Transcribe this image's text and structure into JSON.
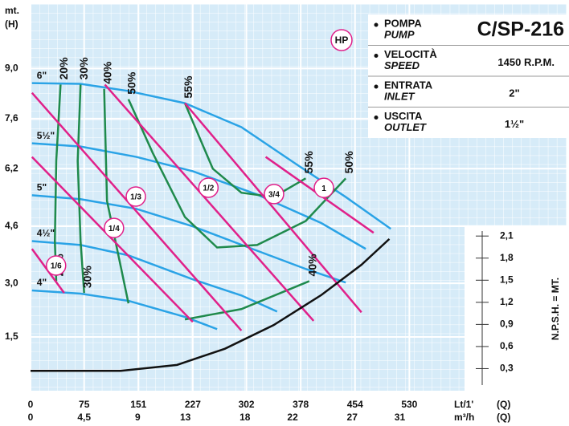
{
  "chart_data": {
    "type": "line",
    "y_axis_label": "mt.",
    "y_axis_unit": "(H)",
    "x_axis_label": "Lt/1'",
    "x_axis_unit": "(Q)",
    "x2_axis_label": "m³/h",
    "x2_axis_unit": "(Q)",
    "y2_axis_label": "N.P.S.H. = MT.",
    "badge": "HP",
    "grid": true,
    "xlim": [
      0,
      750
    ],
    "xticks": [
      0,
      75,
      151,
      227,
      302,
      378,
      454,
      530
    ],
    "x2lim": [
      0,
      45
    ],
    "x2ticks": [
      0,
      {
        "value": 4.5,
        "label": "4,5"
      },
      9,
      13,
      18,
      22,
      27,
      31
    ],
    "ylim": [
      0,
      10.8
    ],
    "yticks": [
      {
        "value": 1.5,
        "label": "1,5"
      },
      {
        "value": 3.0,
        "label": "3,0"
      },
      {
        "value": 4.6,
        "label": "4,6"
      },
      {
        "value": 6.2,
        "label": "6,2"
      },
      {
        "value": 7.6,
        "label": "7,6"
      },
      {
        "value": 9.0,
        "label": "9,0"
      }
    ],
    "y2lim": [
      0,
      5.25
    ],
    "y2ticks": [
      {
        "value": 0.3,
        "label": "0,3"
      },
      {
        "value": 0.6,
        "label": "0,6"
      },
      {
        "value": 0.9,
        "label": "0,9"
      },
      {
        "value": 1.2,
        "label": "1,2"
      },
      {
        "value": 1.5,
        "label": "1,5"
      },
      {
        "value": 1.8,
        "label": "1,8"
      },
      {
        "value": 2.1,
        "label": "2,1"
      }
    ],
    "impeller_curves": [
      {
        "name": "6\"",
        "color": "#2aa3e6",
        "x": [
          2,
          70,
          137,
          216,
          295,
          373,
          441,
          504
        ],
        "y": [
          8.59,
          8.57,
          8.37,
          8.03,
          7.36,
          6.31,
          5.41,
          4.52
        ]
      },
      {
        "name": "5½\"",
        "color": "#2aa3e6",
        "x": [
          2,
          70,
          148,
          227,
          317,
          407,
          469
        ],
        "y": [
          6.91,
          6.82,
          6.53,
          6.13,
          5.48,
          4.68,
          3.96
        ]
      },
      {
        "name": "5\"",
        "color": "#2aa3e6",
        "x": [
          2,
          70,
          148,
          227,
          317,
          385,
          441
        ],
        "y": [
          5.46,
          5.35,
          5.08,
          4.59,
          3.91,
          3.4,
          3.02
        ]
      },
      {
        "name": "4½\"",
        "color": "#2aa3e6",
        "x": [
          2,
          70,
          137,
          227,
          295,
          345
        ],
        "y": [
          4.18,
          4.07,
          3.78,
          3.11,
          2.66,
          2.21
        ]
      },
      {
        "name": "4\"",
        "color": "#2aa3e6",
        "x": [
          2,
          70,
          137,
          216,
          261
        ],
        "y": [
          2.8,
          2.71,
          2.51,
          2.06,
          1.72
        ]
      }
    ],
    "power_curves": [
      {
        "name": "1/6",
        "color": "#e0218a",
        "x": [
          2,
          47
        ],
        "y": [
          3.96,
          2.73
        ]
      },
      {
        "name": "1/4",
        "color": "#e0218a",
        "x": [
          2,
          227
        ],
        "y": [
          6.53,
          1.92
        ]
      },
      {
        "name": "1/3",
        "color": "#e0218a",
        "x": [
          2,
          295
        ],
        "y": [
          8.32,
          1.68
        ]
      },
      {
        "name": "1/2",
        "color": "#e0218a",
        "x": [
          104,
          396
        ],
        "y": [
          8.55,
          1.95
        ]
      },
      {
        "name": "3/4",
        "color": "#e0218a",
        "x": [
          216,
          463
        ],
        "y": [
          8.03,
          2.19
        ]
      },
      {
        "name": "1",
        "color": "#e0218a",
        "x": [
          329,
          480
        ],
        "y": [
          6.53,
          4.41
        ]
      }
    ],
    "efficiency_curves": [
      {
        "name": "20%",
        "color": "#1f8a4c",
        "x": [
          42,
          36,
          34,
          36
        ],
        "y": [
          8.55,
          6.42,
          4.18,
          3.06
        ]
      },
      {
        "name": "30%",
        "color": "#1f8a4c",
        "x": [
          70,
          66,
          70,
          75
        ],
        "y": [
          8.55,
          6.42,
          4.18,
          2.73
        ]
      },
      {
        "name": "40%",
        "color": "#1f8a4c",
        "x": [
          103,
          107,
          137,
          null,
          216,
          295,
          390
        ],
        "y": [
          8.43,
          5.3,
          2.44,
          null,
          1.99,
          2.28,
          3.06
        ]
      },
      {
        "name": "50%",
        "color": "#1f8a4c",
        "x": [
          137,
          171,
          216,
          261,
          317,
          385,
          441
        ],
        "y": [
          8.14,
          6.64,
          4.85,
          4.0,
          4.07,
          4.74,
          5.93
        ]
      },
      {
        "name": "55%",
        "color": "#1f8a4c",
        "x": [
          216,
          255,
          295,
          340,
          385
        ],
        "y": [
          8.03,
          6.2,
          5.53,
          5.41,
          5.93
        ]
      }
    ],
    "npsh_curve": {
      "color": "#111111",
      "axis": "y2",
      "x": [
        0,
        126,
        205,
        272,
        340,
        407,
        463,
        502
      ],
      "y": [
        0.27,
        0.27,
        0.35,
        0.57,
        0.89,
        1.3,
        1.71,
        2.06
      ]
    }
  },
  "panel": {
    "rows": [
      {
        "label": "POMPA",
        "label_en": "PUMP",
        "value": "C/SP-216"
      },
      {
        "label": "VELOCITÀ",
        "label_en": "SPEED",
        "value": "1450 R.P.M."
      },
      {
        "label": "ENTRATA",
        "label_en": "INLET",
        "value": "2\""
      },
      {
        "label": "USCITA",
        "label_en": "OUTLET",
        "value": "1½\""
      }
    ]
  }
}
